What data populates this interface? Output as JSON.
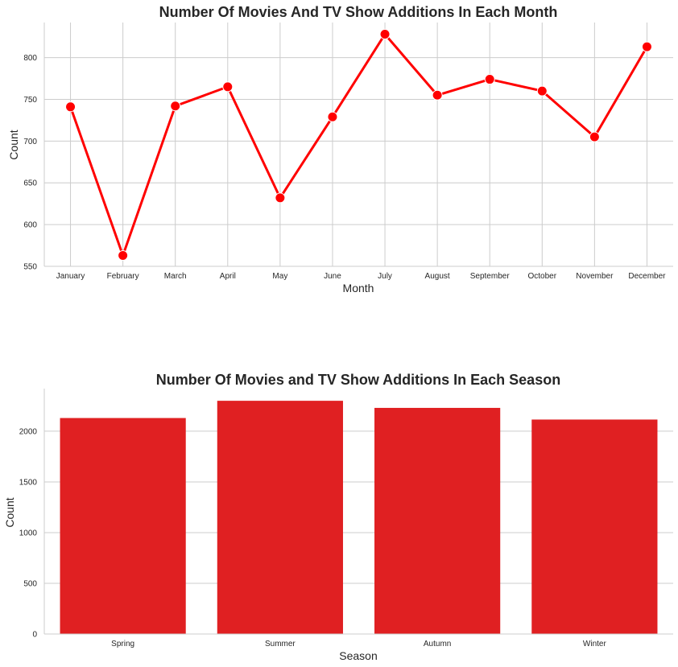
{
  "chart_data": [
    {
      "type": "line",
      "title": "Number Of Movies And TV Show Additions In Each Month",
      "xlabel": "Month",
      "ylabel": "Count",
      "categories": [
        "January",
        "February",
        "March",
        "April",
        "May",
        "June",
        "July",
        "August",
        "September",
        "October",
        "November",
        "December"
      ],
      "values": [
        741,
        563,
        742,
        765,
        632,
        729,
        828,
        755,
        774,
        760,
        705,
        813
      ],
      "ylim": [
        550,
        842
      ],
      "yticks": [
        550,
        600,
        650,
        700,
        750,
        800
      ],
      "grid": true,
      "color": "#ff0000"
    },
    {
      "type": "bar",
      "title": "Number Of Movies and TV Show Additions In Each Season",
      "xlabel": "Season",
      "ylabel": "Count",
      "categories": [
        "Spring",
        "Summer",
        "Autumn",
        "Winter"
      ],
      "values": [
        2130,
        2300,
        2230,
        2115
      ],
      "ylim": [
        0,
        2420
      ],
      "yticks": [
        0,
        500,
        1000,
        1500,
        2000
      ],
      "grid": true,
      "color": "#e02022"
    }
  ]
}
